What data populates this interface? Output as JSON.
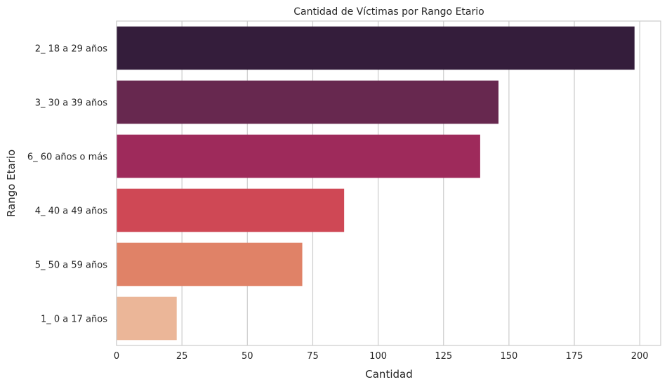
{
  "chart_data": {
    "type": "bar",
    "orientation": "horizontal",
    "title": "Cantidad de Víctimas por Rango Etario",
    "xlabel": "Cantidad",
    "ylabel": "Rango Etario",
    "categories": [
      "2_ 18 a 29 años",
      "3_ 30 a 39 años",
      "6_ 60 años o más",
      "4_ 40 a 49 años",
      "5_ 50 a 59 años",
      "1_ 0 a 17 años"
    ],
    "values": [
      198,
      146,
      139,
      87,
      71,
      23
    ],
    "colors": [
      "#341d3b",
      "#67284f",
      "#9e2a5b",
      "#cf4855",
      "#e08267",
      "#ebb698"
    ],
    "xlim": [
      0,
      208
    ],
    "xticks": [
      0,
      25,
      50,
      75,
      100,
      125,
      150,
      175,
      200
    ],
    "grid": "vertical",
    "legend": "none"
  }
}
